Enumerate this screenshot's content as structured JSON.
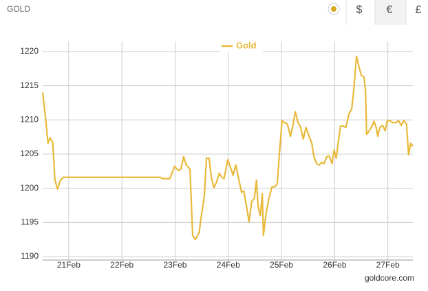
{
  "header": {
    "label": "GOLD",
    "currencies": [
      "$",
      "€",
      "£"
    ]
  },
  "credit": "goldcore.com",
  "chart_data": {
    "type": "line",
    "x": [
      20.51,
      20.57,
      20.61,
      20.65,
      20.7,
      20.74,
      20.79,
      20.84,
      20.9,
      22.72,
      22.77,
      22.9,
      22.99,
      23.06,
      23.11,
      23.16,
      23.21,
      23.28,
      23.33,
      23.38,
      23.45,
      23.5,
      23.55,
      23.59,
      23.64,
      23.68,
      23.73,
      23.78,
      23.83,
      23.88,
      23.92,
      23.99,
      24.04,
      24.09,
      24.14,
      24.2,
      24.25,
      24.29,
      24.34,
      24.39,
      24.44,
      24.49,
      24.53,
      24.56,
      24.6,
      24.64,
      24.66,
      24.71,
      24.76,
      24.82,
      24.87,
      24.92,
      24.96,
      25.01,
      25.06,
      25.11,
      25.17,
      25.22,
      25.26,
      25.31,
      25.36,
      25.41,
      25.46,
      25.52,
      25.57,
      25.61,
      25.66,
      25.71,
      25.76,
      25.8,
      25.85,
      25.9,
      25.95,
      25.99,
      26.03,
      26.07,
      26.11,
      26.16,
      26.21,
      26.27,
      26.32,
      26.36,
      26.41,
      26.46,
      26.5,
      26.55,
      26.58,
      26.6,
      26.65,
      26.71,
      26.74,
      26.78,
      26.81,
      26.85,
      26.9,
      26.95,
      26.99,
      27.04,
      27.09,
      27.15,
      27.2,
      27.25,
      27.3,
      27.35,
      27.39,
      27.43,
      27.47
    ],
    "series": [
      {
        "name": "Gold",
        "color": "#e8b93a",
        "values": [
          1214.0,
          1209.9,
          1206.6,
          1207.4,
          1206.7,
          1201.2,
          1199.9,
          1201.1,
          1201.6,
          1201.6,
          1201.4,
          1201.4,
          1203.2,
          1202.6,
          1202.8,
          1204.6,
          1203.4,
          1202.8,
          1193.1,
          1192.5,
          1193.5,
          1196.3,
          1198.9,
          1204.4,
          1204.4,
          1201.6,
          1200.1,
          1200.9,
          1202.2,
          1201.6,
          1201.4,
          1204.2,
          1203.1,
          1201.9,
          1203.4,
          1201.2,
          1199.4,
          1199.6,
          1197.5,
          1195.1,
          1198.1,
          1198.5,
          1201.2,
          1197.3,
          1196.0,
          1199.2,
          1193.1,
          1196.3,
          1198.4,
          1200.2,
          1200.2,
          1200.6,
          1204.9,
          1209.9,
          1209.6,
          1209.4,
          1207.6,
          1209.4,
          1211.2,
          1209.6,
          1208.9,
          1207.2,
          1208.9,
          1207.6,
          1206.6,
          1204.6,
          1203.6,
          1203.4,
          1203.8,
          1203.6,
          1204.6,
          1204.7,
          1203.6,
          1205.6,
          1204.4,
          1206.9,
          1209.1,
          1209.1,
          1208.9,
          1210.9,
          1211.6,
          1214.5,
          1219.3,
          1217.7,
          1216.5,
          1216.3,
          1214.3,
          1207.9,
          1208.4,
          1209.2,
          1209.8,
          1208.9,
          1207.6,
          1208.9,
          1209.2,
          1208.4,
          1209.9,
          1209.9,
          1209.6,
          1209.6,
          1209.9,
          1209.2,
          1209.9,
          1209.4,
          1204.9,
          1206.6,
          1206.1
        ]
      }
    ],
    "xlim": [
      20.51,
      27.47
    ],
    "xticks": [
      {
        "value": 21,
        "label": "21Feb"
      },
      {
        "value": 22,
        "label": "22Feb"
      },
      {
        "value": 23,
        "label": "23Feb"
      },
      {
        "value": 24,
        "label": "24Feb"
      },
      {
        "value": 25,
        "label": "25Feb"
      },
      {
        "value": 26,
        "label": "26Feb"
      },
      {
        "value": 27,
        "label": "27Feb"
      }
    ],
    "ylim": [
      1189.5,
      1221.5
    ],
    "yticks": [
      1190,
      1195,
      1200,
      1205,
      1210,
      1215,
      1220
    ],
    "grid": true,
    "legend": "top"
  }
}
